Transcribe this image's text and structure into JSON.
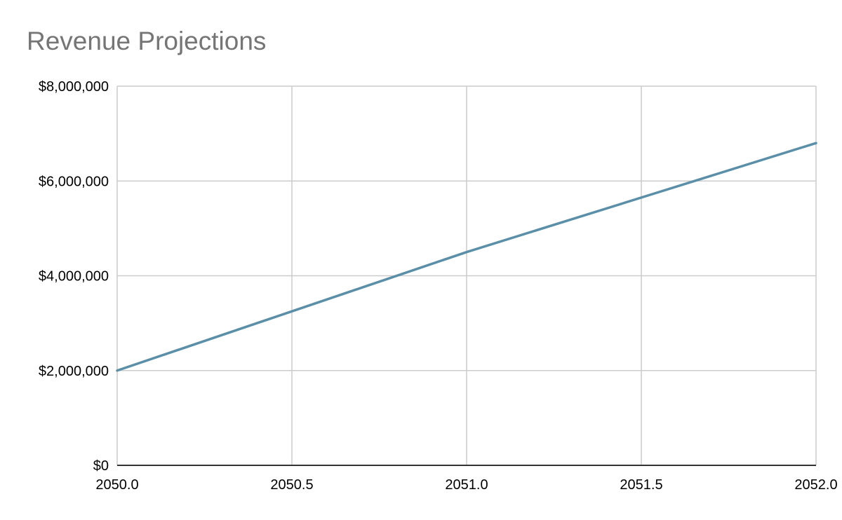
{
  "chart_data": {
    "type": "line",
    "title": "Revenue Projections",
    "xlabel": "",
    "ylabel": "",
    "x": [
      2050.0,
      2051.0,
      2052.0
    ],
    "series": [
      {
        "values": [
          2000000,
          4500000,
          6800000
        ],
        "color": "#5b8fa8"
      }
    ],
    "xlim": [
      2050.0,
      2052.0
    ],
    "ylim": [
      0,
      8000000
    ],
    "x_ticks": [
      "2050.0",
      "2050.5",
      "2051.0",
      "2051.5",
      "2052.0"
    ],
    "y_ticks": [
      "$0",
      "$2,000,000",
      "$4,000,000",
      "$6,000,000",
      "$8,000,000"
    ],
    "grid": true,
    "legend": "none"
  }
}
